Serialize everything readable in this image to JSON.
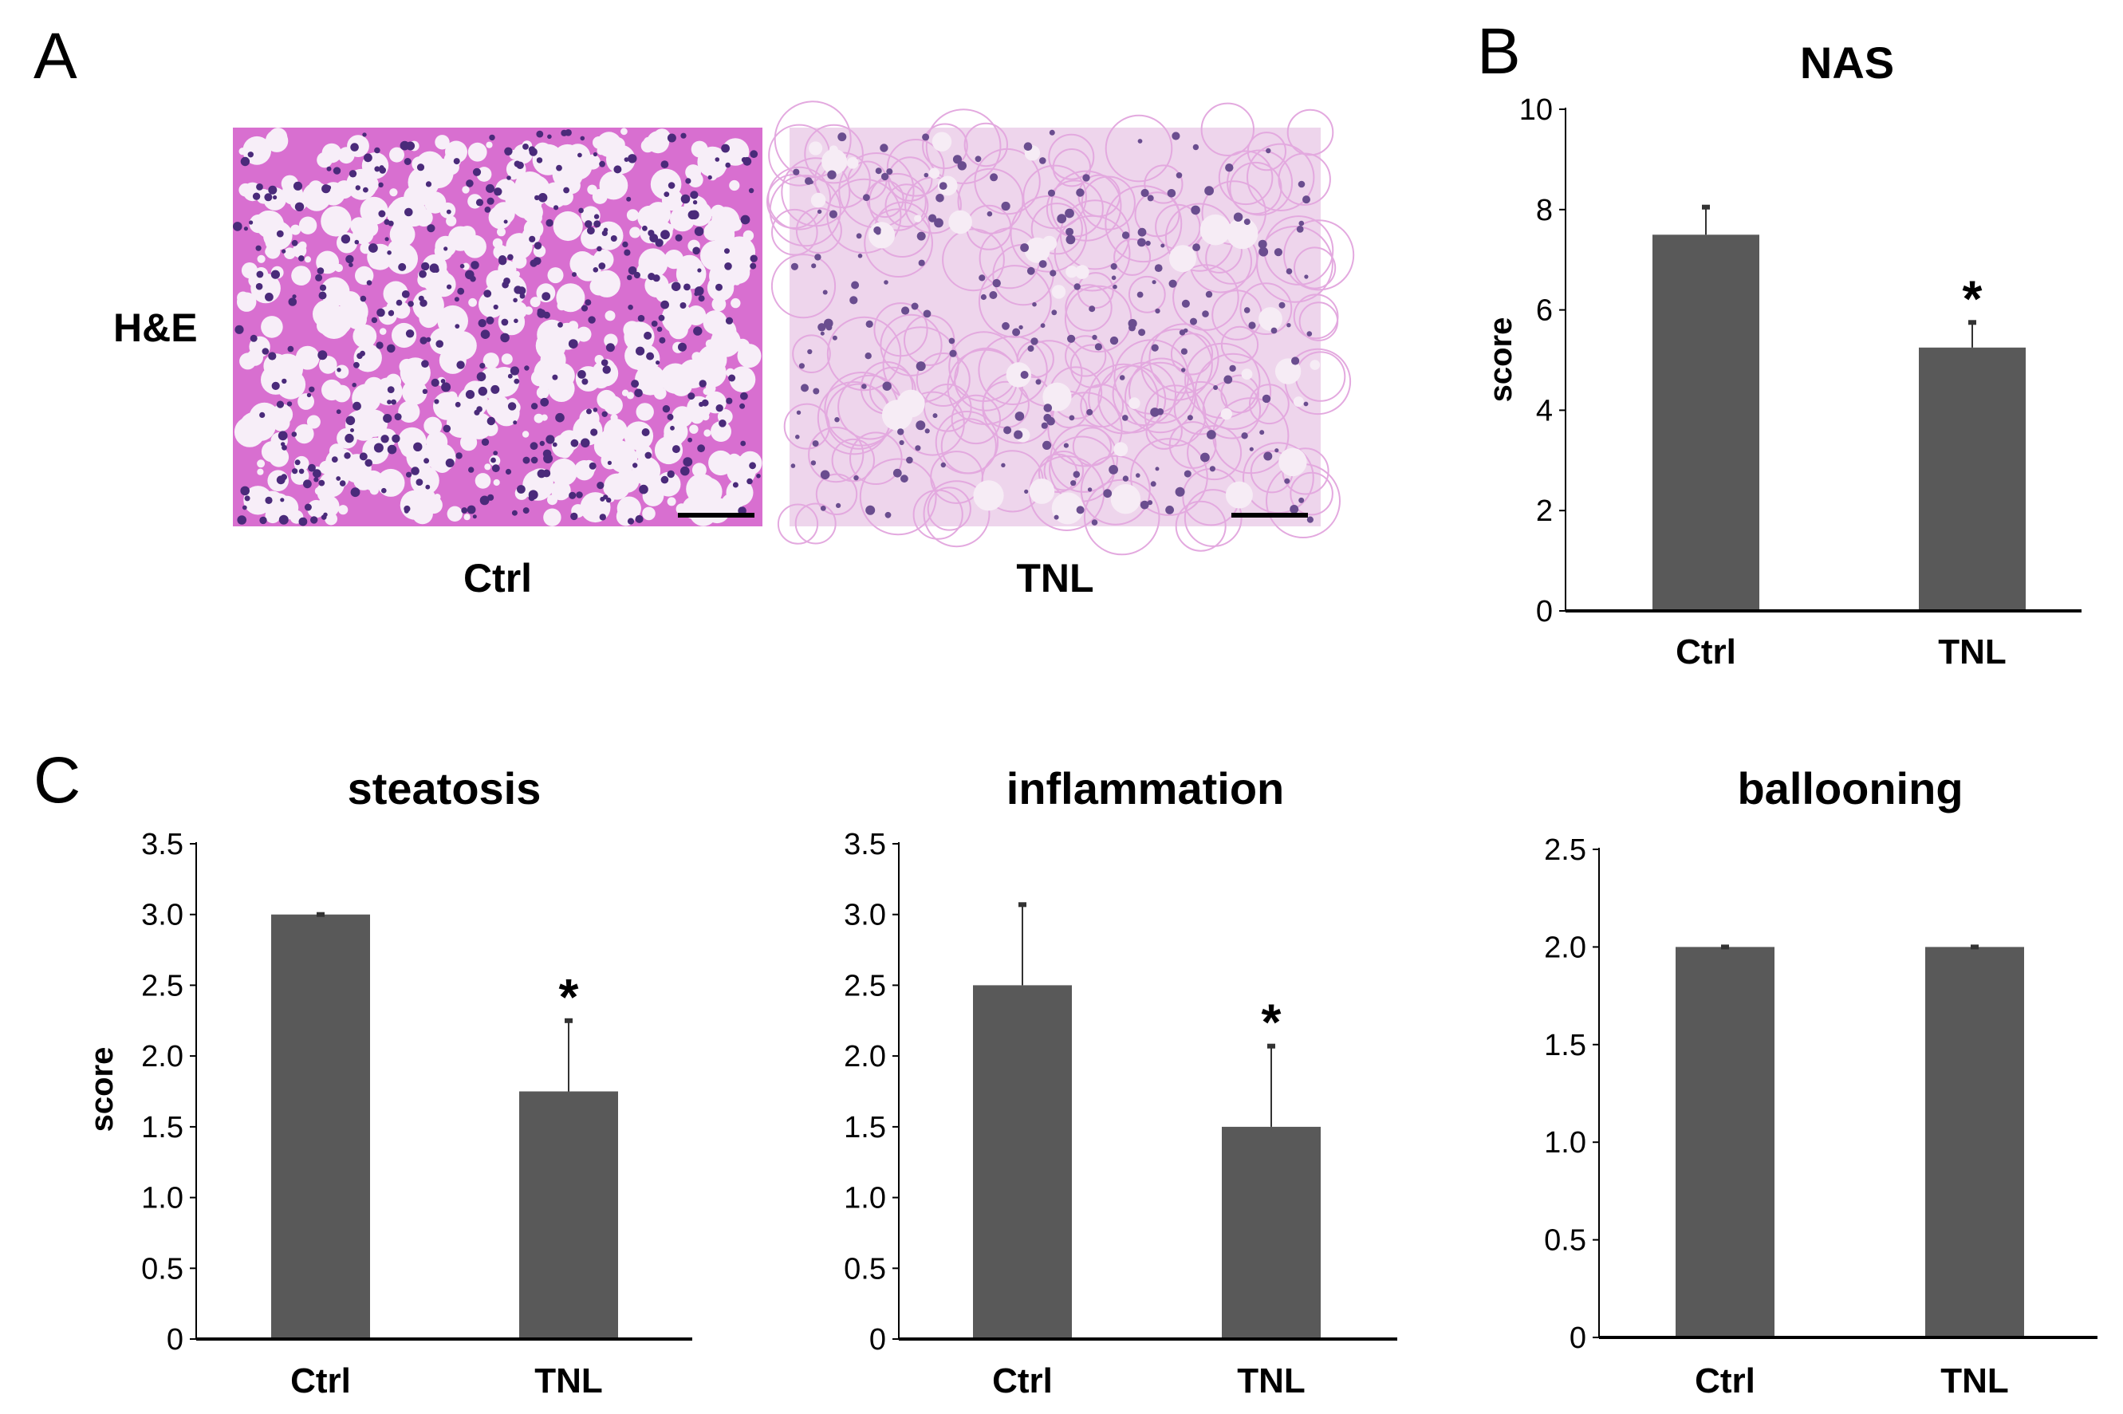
{
  "panels": {
    "A": {
      "letter": "A",
      "row_label": "H&E",
      "images": [
        {
          "label": "Ctrl",
          "tone": "dense-pink-purple"
        },
        {
          "label": "TNL",
          "tone": "pale-pink"
        }
      ]
    },
    "B": {
      "letter": "B"
    },
    "C": {
      "letter": "C"
    }
  },
  "colors": {
    "bar": "#595959",
    "axis": "#000000",
    "he_ctrl_bg": "#d86fd0",
    "he_tnl_bg": "#eed5ec",
    "nuclei": "#4a2a7a"
  },
  "chart_data": [
    {
      "id": "nas",
      "type": "bar",
      "title": "NAS",
      "ylabel": "score",
      "categories": [
        "Ctrl",
        "TNL"
      ],
      "values": [
        7.5,
        5.25
      ],
      "errors": [
        0.55,
        0.5
      ],
      "significance": [
        "",
        "*"
      ],
      "ylim": [
        0,
        10
      ],
      "yticks": [
        "0",
        "2",
        "4",
        "6",
        "8",
        "10"
      ],
      "ytick_values": [
        0,
        2,
        4,
        6,
        8,
        10
      ],
      "legend": "none",
      "grid": false
    },
    {
      "id": "steatosis",
      "type": "bar",
      "title": "steatosis",
      "ylabel": "score",
      "categories": [
        "Ctrl",
        "TNL"
      ],
      "values": [
        3.0,
        1.75
      ],
      "errors": [
        0.0,
        0.5
      ],
      "significance": [
        "",
        "*"
      ],
      "ylim": [
        0,
        3.5
      ],
      "yticks": [
        "0",
        "0.5",
        "1.0",
        "1.5",
        "2.0",
        "2.5",
        "3.0",
        "3.5"
      ],
      "ytick_values": [
        0,
        0.5,
        1.0,
        1.5,
        2.0,
        2.5,
        3.0,
        3.5
      ],
      "legend": "none",
      "grid": false
    },
    {
      "id": "inflammation",
      "type": "bar",
      "title": "inflammation",
      "ylabel": "",
      "categories": [
        "Ctrl",
        "TNL"
      ],
      "values": [
        2.5,
        1.5
      ],
      "errors": [
        0.57,
        0.57
      ],
      "significance": [
        "",
        "*"
      ],
      "ylim": [
        0,
        3.5
      ],
      "yticks": [
        "0",
        "0.5",
        "1.0",
        "1.5",
        "2.0",
        "2.5",
        "3.0",
        "3.5"
      ],
      "ytick_values": [
        0,
        0.5,
        1.0,
        1.5,
        2.0,
        2.5,
        3.0,
        3.5
      ],
      "legend": "none",
      "grid": false
    },
    {
      "id": "ballooning",
      "type": "bar",
      "title": "ballooning",
      "ylabel": "",
      "categories": [
        "Ctrl",
        "TNL"
      ],
      "values": [
        2.0,
        2.0
      ],
      "errors": [
        0.0,
        0.0
      ],
      "significance": [
        "",
        ""
      ],
      "ylim": [
        0,
        2.5
      ],
      "yticks": [
        "0",
        "0.5",
        "1.0",
        "1.5",
        "2.0",
        "2.5"
      ],
      "ytick_values": [
        0,
        0.5,
        1.0,
        1.5,
        2.0,
        2.5
      ],
      "legend": "none",
      "grid": false
    }
  ]
}
